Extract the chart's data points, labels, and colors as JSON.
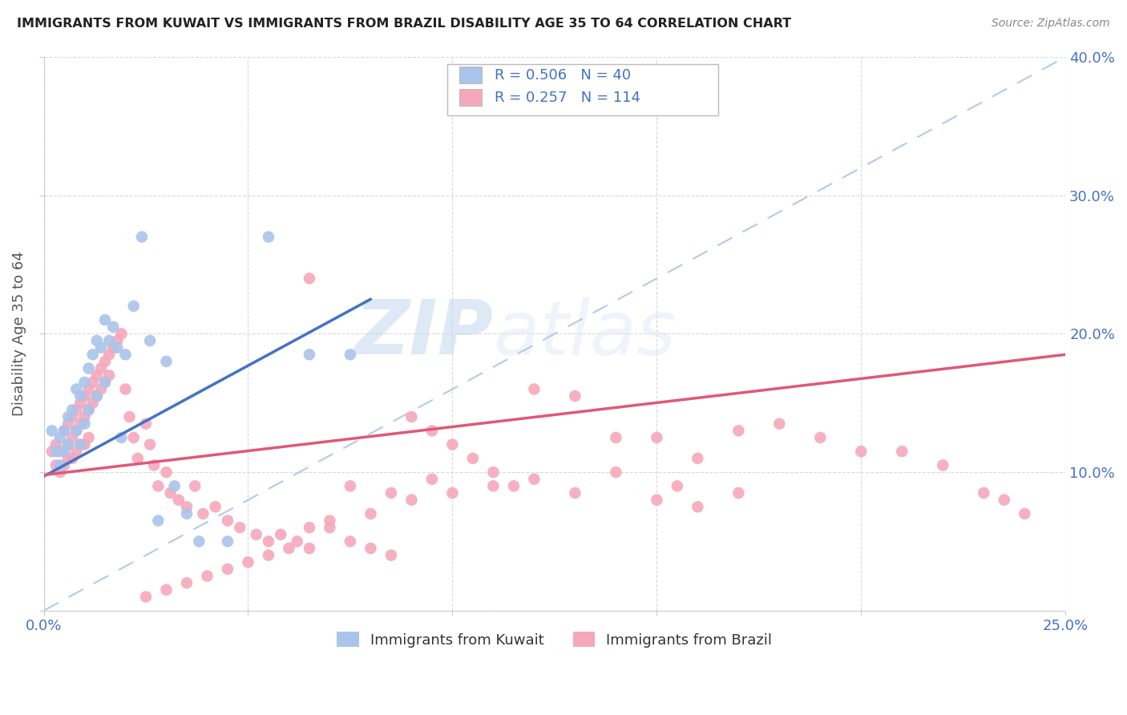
{
  "title": "IMMIGRANTS FROM KUWAIT VS IMMIGRANTS FROM BRAZIL DISABILITY AGE 35 TO 64 CORRELATION CHART",
  "source": "Source: ZipAtlas.com",
  "ylabel": "Disability Age 35 to 64",
  "xlim": [
    0.0,
    0.25
  ],
  "ylim": [
    0.0,
    0.4
  ],
  "kuwait_color": "#aac4ea",
  "brazil_color": "#f5a8bc",
  "kuwait_line_color": "#4472c4",
  "brazil_line_color": "#e05878",
  "diag_line_color": "#b0cce8",
  "R_kuwait": 0.506,
  "N_kuwait": 40,
  "R_brazil": 0.257,
  "N_brazil": 114,
  "watermark_zip": "ZIP",
  "watermark_atlas": "atlas",
  "background_color": "#ffffff",
  "grid_color": "#d0d0d0",
  "axis_color": "#4472c4",
  "title_color": "#222222",
  "source_color": "#888888",
  "ylabel_color": "#555555",
  "kuwait_line_x": [
    0.0,
    0.08
  ],
  "kuwait_line_y": [
    0.097,
    0.225
  ],
  "brazil_line_x": [
    0.0,
    0.25
  ],
  "brazil_line_y": [
    0.098,
    0.185
  ],
  "kuwait_x": [
    0.002,
    0.003,
    0.004,
    0.004,
    0.005,
    0.005,
    0.006,
    0.006,
    0.007,
    0.008,
    0.008,
    0.009,
    0.009,
    0.01,
    0.01,
    0.011,
    0.011,
    0.012,
    0.013,
    0.013,
    0.014,
    0.015,
    0.015,
    0.016,
    0.017,
    0.018,
    0.019,
    0.02,
    0.022,
    0.024,
    0.026,
    0.028,
    0.03,
    0.032,
    0.035,
    0.038,
    0.045,
    0.055,
    0.065,
    0.075
  ],
  "kuwait_y": [
    0.13,
    0.115,
    0.125,
    0.105,
    0.13,
    0.115,
    0.14,
    0.12,
    0.145,
    0.16,
    0.13,
    0.155,
    0.12,
    0.165,
    0.135,
    0.175,
    0.145,
    0.185,
    0.195,
    0.155,
    0.19,
    0.21,
    0.165,
    0.195,
    0.205,
    0.19,
    0.125,
    0.185,
    0.22,
    0.27,
    0.195,
    0.065,
    0.18,
    0.09,
    0.07,
    0.05,
    0.05,
    0.27,
    0.185,
    0.185
  ],
  "brazil_x": [
    0.002,
    0.003,
    0.003,
    0.004,
    0.004,
    0.005,
    0.005,
    0.005,
    0.006,
    0.006,
    0.006,
    0.007,
    0.007,
    0.007,
    0.008,
    0.008,
    0.008,
    0.009,
    0.009,
    0.009,
    0.01,
    0.01,
    0.01,
    0.011,
    0.011,
    0.011,
    0.012,
    0.012,
    0.013,
    0.013,
    0.014,
    0.014,
    0.015,
    0.015,
    0.016,
    0.016,
    0.017,
    0.018,
    0.019,
    0.02,
    0.021,
    0.022,
    0.023,
    0.025,
    0.026,
    0.027,
    0.028,
    0.03,
    0.031,
    0.033,
    0.035,
    0.037,
    0.039,
    0.042,
    0.045,
    0.048,
    0.052,
    0.055,
    0.058,
    0.062,
    0.065,
    0.07,
    0.075,
    0.08,
    0.085,
    0.09,
    0.095,
    0.1,
    0.105,
    0.11,
    0.115,
    0.12,
    0.13,
    0.14,
    0.15,
    0.16,
    0.17,
    0.18,
    0.19,
    0.2,
    0.21,
    0.22,
    0.23,
    0.235,
    0.24,
    0.065,
    0.075,
    0.085,
    0.095,
    0.11,
    0.13,
    0.15,
    0.16,
    0.17,
    0.155,
    0.14,
    0.12,
    0.1,
    0.09,
    0.08,
    0.07,
    0.065,
    0.06,
    0.055,
    0.05,
    0.045,
    0.04,
    0.035,
    0.03,
    0.025
  ],
  "brazil_y": [
    0.115,
    0.12,
    0.105,
    0.115,
    0.1,
    0.13,
    0.115,
    0.105,
    0.135,
    0.12,
    0.11,
    0.14,
    0.125,
    0.11,
    0.145,
    0.13,
    0.115,
    0.15,
    0.135,
    0.12,
    0.155,
    0.14,
    0.12,
    0.16,
    0.145,
    0.125,
    0.165,
    0.15,
    0.17,
    0.155,
    0.175,
    0.16,
    0.18,
    0.165,
    0.185,
    0.17,
    0.19,
    0.195,
    0.2,
    0.16,
    0.14,
    0.125,
    0.11,
    0.135,
    0.12,
    0.105,
    0.09,
    0.1,
    0.085,
    0.08,
    0.075,
    0.09,
    0.07,
    0.075,
    0.065,
    0.06,
    0.055,
    0.05,
    0.055,
    0.05,
    0.045,
    0.06,
    0.05,
    0.045,
    0.04,
    0.14,
    0.13,
    0.12,
    0.11,
    0.1,
    0.09,
    0.16,
    0.155,
    0.125,
    0.125,
    0.11,
    0.13,
    0.135,
    0.125,
    0.115,
    0.115,
    0.105,
    0.085,
    0.08,
    0.07,
    0.24,
    0.09,
    0.085,
    0.095,
    0.09,
    0.085,
    0.08,
    0.075,
    0.085,
    0.09,
    0.1,
    0.095,
    0.085,
    0.08,
    0.07,
    0.065,
    0.06,
    0.045,
    0.04,
    0.035,
    0.03,
    0.025,
    0.02,
    0.015,
    0.01
  ]
}
